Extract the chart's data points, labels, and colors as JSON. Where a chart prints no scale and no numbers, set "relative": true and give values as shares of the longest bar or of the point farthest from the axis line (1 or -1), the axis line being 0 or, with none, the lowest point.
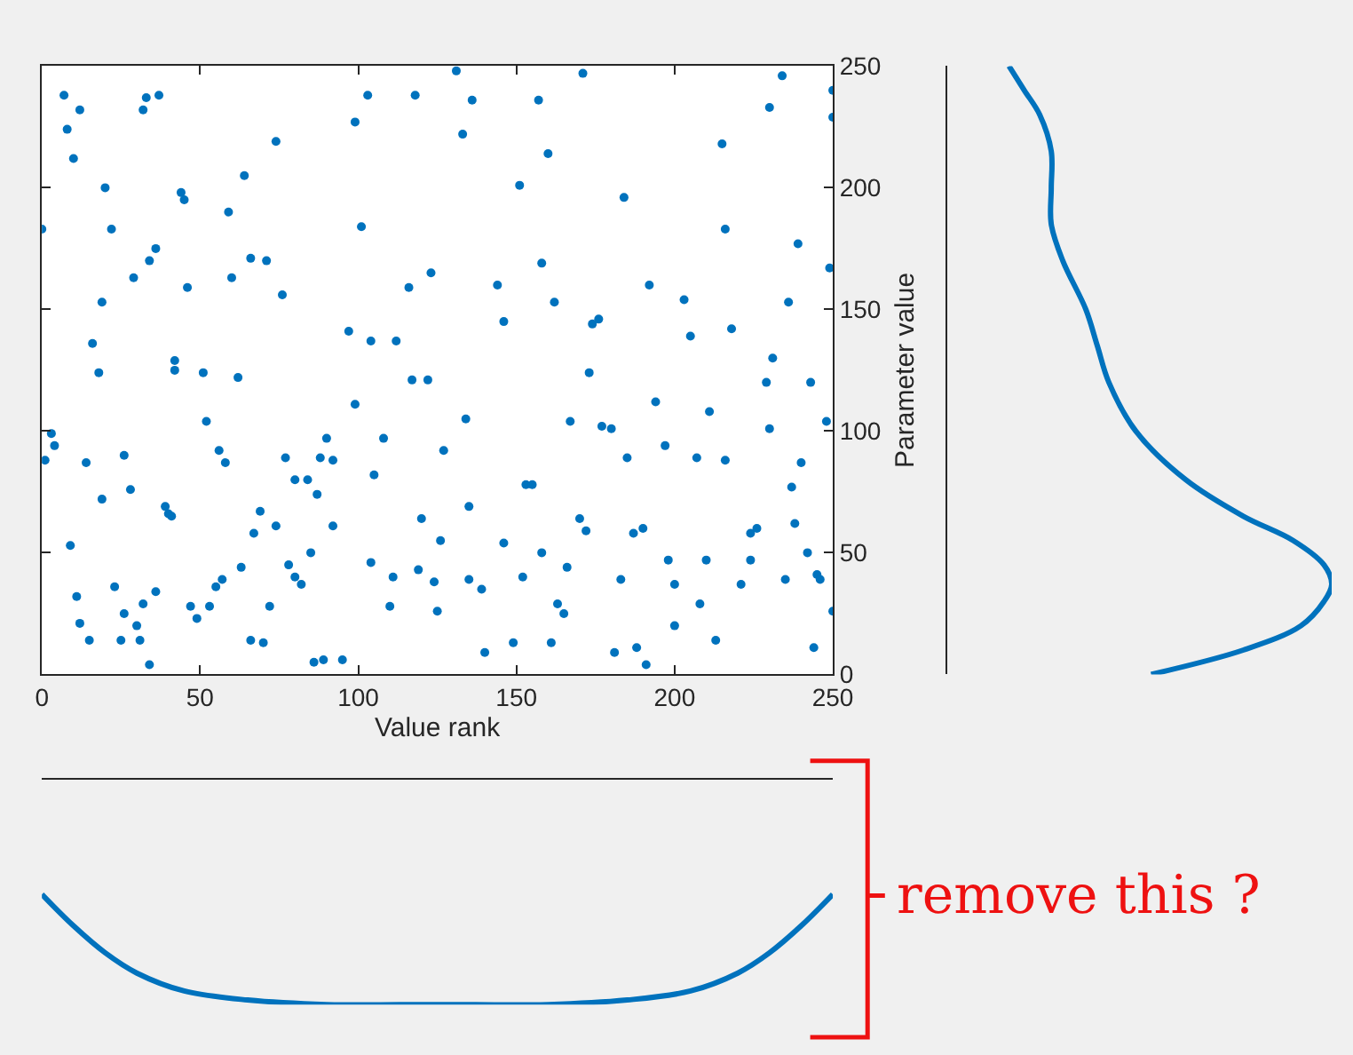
{
  "chart_data": [
    {
      "type": "scatter",
      "xlabel": "Value rank",
      "ylabel": "Parameter value",
      "color": "#0072bd",
      "marker": "circle",
      "xlim": [
        0,
        250
      ],
      "ylim": [
        0,
        250
      ],
      "xticks": [
        0,
        50,
        100,
        150,
        200,
        250
      ],
      "yticks": [
        0,
        50,
        100,
        150,
        200,
        250
      ],
      "x": [
        0,
        1,
        3,
        4,
        7,
        8,
        10,
        12,
        9,
        11,
        12,
        14,
        15,
        16,
        18,
        19,
        19,
        20,
        22,
        23,
        25,
        26,
        26,
        28,
        29,
        30,
        31,
        32,
        34,
        32,
        33,
        37,
        34,
        36,
        36,
        39,
        40,
        41,
        42,
        42,
        44,
        45,
        46,
        47,
        49,
        51,
        52,
        53,
        55,
        57,
        56,
        58,
        59,
        60,
        62,
        63,
        64,
        66,
        67,
        69,
        66,
        70,
        71,
        74,
        76,
        74,
        72,
        77,
        78,
        80,
        82,
        85,
        80,
        84,
        87,
        86,
        89,
        88,
        90,
        92,
        92,
        95,
        97,
        99,
        99,
        101,
        103,
        104,
        104,
        105,
        108,
        110,
        111,
        112,
        116,
        118,
        117,
        119,
        120,
        122,
        123,
        124,
        125,
        126,
        127,
        131,
        133,
        134,
        135,
        136,
        135,
        139,
        140,
        144,
        146,
        146,
        149,
        151,
        152,
        153,
        155,
        157,
        158,
        158,
        160,
        161,
        162,
        163,
        165,
        166,
        167,
        170,
        171,
        172,
        173,
        174,
        176,
        177,
        180,
        181,
        183,
        184,
        185,
        187,
        188,
        190,
        191,
        192,
        194,
        197,
        198,
        200,
        200,
        203,
        205,
        207,
        208,
        210,
        211,
        213,
        215,
        216,
        216,
        218,
        221,
        224,
        224,
        226,
        229,
        230,
        230,
        231,
        234,
        235,
        236,
        237,
        238,
        239,
        240,
        242,
        243,
        244,
        245,
        246,
        248,
        249,
        250,
        250,
        250
      ],
      "values": [
        183,
        88,
        99,
        94,
        238,
        224,
        212,
        232,
        53,
        32,
        21,
        87,
        14,
        136,
        124,
        153,
        72,
        200,
        183,
        36,
        14,
        25,
        90,
        76,
        163,
        20,
        14,
        29,
        4,
        232,
        237,
        238,
        170,
        175,
        34,
        69,
        66,
        65,
        129,
        125,
        198,
        195,
        159,
        28,
        23,
        124,
        104,
        28,
        36,
        39,
        92,
        87,
        190,
        163,
        122,
        44,
        205,
        171,
        58,
        67,
        14,
        13,
        170,
        219,
        156,
        61,
        28,
        89,
        45,
        40,
        37,
        50,
        80,
        80,
        74,
        5,
        6,
        89,
        97,
        61,
        88,
        6,
        141,
        227,
        111,
        184,
        238,
        137,
        46,
        82,
        97,
        28,
        40,
        137,
        159,
        238,
        121,
        43,
        64,
        121,
        165,
        38,
        26,
        55,
        92,
        248,
        222,
        105,
        69,
        236,
        39,
        35,
        9,
        160,
        145,
        54,
        13,
        201,
        40,
        78,
        78,
        236,
        169,
        50,
        214,
        13,
        153,
        29,
        25,
        44,
        104,
        64,
        247,
        59,
        124,
        144,
        146,
        102,
        101,
        9,
        39,
        196,
        89,
        58,
        11,
        60,
        4,
        160,
        112,
        94,
        47,
        37,
        20,
        154,
        139,
        89,
        29,
        47,
        108,
        14,
        218,
        183,
        88,
        142,
        37,
        47,
        58,
        60,
        120,
        233,
        101,
        130,
        246,
        39,
        153,
        77,
        62,
        177,
        87,
        50,
        120,
        11,
        41,
        39,
        104,
        167,
        229,
        240,
        26
      ]
    },
    {
      "type": "line",
      "orientation": "horizontal",
      "relative": true,
      "color": "#0072bd",
      "ylim": [
        0,
        250
      ],
      "tick_labels": false,
      "x": [
        0,
        10,
        20,
        30,
        37,
        45,
        55,
        65,
        80,
        100,
        120,
        135,
        150,
        170,
        185,
        200,
        215,
        230,
        240,
        250
      ],
      "values": [
        0.53,
        0.77,
        0.92,
        0.98,
        1.0,
        0.98,
        0.9,
        0.77,
        0.62,
        0.49,
        0.42,
        0.39,
        0.36,
        0.3,
        0.27,
        0.27,
        0.27,
        0.24,
        0.2,
        0.16
      ]
    },
    {
      "type": "line",
      "relative": true,
      "color": "#0072bd",
      "xlim": [
        0,
        250
      ],
      "tick_labels": false,
      "x": [
        0,
        10,
        20,
        30,
        45,
        65,
        90,
        125,
        160,
        185,
        205,
        220,
        230,
        240,
        250
      ],
      "values": [
        -0.51,
        -0.65,
        -0.77,
        -0.86,
        -0.94,
        -0.98,
        -1.0,
        -1.0,
        -1.0,
        -0.98,
        -0.94,
        -0.86,
        -0.77,
        -0.65,
        -0.51
      ],
      "annotations": [
        "remove this ?"
      ]
    }
  ]
}
